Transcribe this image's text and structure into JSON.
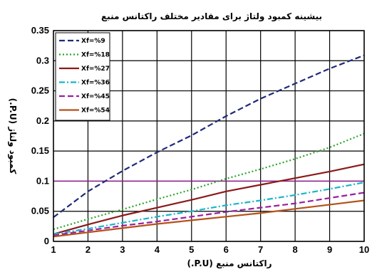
{
  "chart_data": {
    "type": "line",
    "title": "بیشینه کمبود ولتاژ برای مقادیر مختلف راکتانس منبع",
    "xlabel": "راکتانس منبع (P.U.)",
    "ylabel": "کمبود ولتاژ (P.U.)",
    "xlim": [
      1,
      10
    ],
    "ylim": [
      0,
      0.35
    ],
    "xticks": [
      1,
      2,
      3,
      4,
      5,
      6,
      7,
      8,
      9,
      10
    ],
    "yticks": [
      0,
      0.05,
      0.1,
      0.15,
      0.2,
      0.25,
      0.3,
      0.35
    ],
    "xtick_labels": [
      "1",
      "2",
      "3",
      "4",
      "5",
      "6",
      "7",
      "8",
      "9",
      "10"
    ],
    "ytick_labels": [
      "0",
      "0.05",
      "0.1",
      "0.15",
      "0.2",
      "0.25",
      "0.3",
      "0.35"
    ],
    "grid": true,
    "legend_position": "top-left",
    "reference_line": {
      "y": 0.1,
      "color": "#8b1c8b"
    },
    "x": [
      1,
      2,
      3,
      4,
      5,
      6,
      7,
      8,
      9,
      10
    ],
    "series": [
      {
        "name": "Xf=%9",
        "color": "#1f2a7a",
        "dash": "dash",
        "values": [
          0.04,
          0.083,
          0.117,
          0.148,
          0.176,
          0.208,
          0.237,
          0.262,
          0.287,
          0.309
        ]
      },
      {
        "name": "Xf=%18",
        "color": "#2aa52a",
        "dash": "dot",
        "values": [
          0.02,
          0.037,
          0.053,
          0.07,
          0.086,
          0.104,
          0.12,
          0.137,
          0.156,
          0.179
        ]
      },
      {
        "name": "Xf=%27",
        "color": "#8b1a1a",
        "dash": "solid",
        "values": [
          0.012,
          0.028,
          0.043,
          0.056,
          0.069,
          0.083,
          0.094,
          0.105,
          0.116,
          0.128
        ]
      },
      {
        "name": "Xf=%36",
        "color": "#19b5c9",
        "dash": "dashdot",
        "values": [
          0.012,
          0.021,
          0.031,
          0.041,
          0.05,
          0.06,
          0.068,
          0.077,
          0.087,
          0.098
        ]
      },
      {
        "name": "Xf=%45",
        "color": "#9b1fa0",
        "dash": "dash",
        "values": [
          0.01,
          0.018,
          0.026,
          0.033,
          0.041,
          0.049,
          0.056,
          0.063,
          0.072,
          0.081
        ]
      },
      {
        "name": "Xf=%54",
        "color": "#b5511a",
        "dash": "solid",
        "values": [
          0.008,
          0.015,
          0.022,
          0.029,
          0.035,
          0.041,
          0.047,
          0.054,
          0.061,
          0.068
        ]
      }
    ]
  }
}
